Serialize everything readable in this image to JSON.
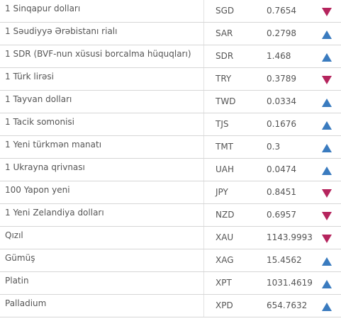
{
  "colors": {
    "down_arrow": "#b5245d",
    "up_arrow": "#3a7bbf",
    "row_divider": "#d6d6d6",
    "text": "#555555"
  },
  "rows": [
    {
      "name": "1 Sinqapur dolları",
      "code": "SGD",
      "value": "0.7654",
      "trend": "down"
    },
    {
      "name": "1 Səudiyyə Ərəbistanı rialı",
      "code": "SAR",
      "value": "0.2798",
      "trend": "up"
    },
    {
      "name": "1 SDR (BVF-nun xüsusi borcalma hüquqları)",
      "code": "SDR",
      "value": "1.468",
      "trend": "up"
    },
    {
      "name": "1 Türk lirəsi",
      "code": "TRY",
      "value": "0.3789",
      "trend": "down"
    },
    {
      "name": "1 Tayvan dolları",
      "code": "TWD",
      "value": "0.0334",
      "trend": "up"
    },
    {
      "name": "1 Tacik somonisi",
      "code": "TJS",
      "value": "0.1676",
      "trend": "up"
    },
    {
      "name": "1 Yeni türkmən manatı",
      "code": "TMT",
      "value": "0.3",
      "trend": "up"
    },
    {
      "name": "1 Ukrayna qrivnası",
      "code": "UAH",
      "value": "0.0474",
      "trend": "up"
    },
    {
      "name": "100 Yapon yeni",
      "code": "JPY",
      "value": "0.8451",
      "trend": "down"
    },
    {
      "name": "1 Yeni Zelandiya dolları",
      "code": "NZD",
      "value": "0.6957",
      "trend": "down"
    },
    {
      "name": "Qızıl",
      "code": "XAU",
      "value": "1143.9993",
      "trend": "down"
    },
    {
      "name": "Gümüş",
      "code": "XAG",
      "value": "15.4562",
      "trend": "up"
    },
    {
      "name": "Platin",
      "code": "XPT",
      "value": "1031.4619",
      "trend": "up"
    },
    {
      "name": "Palladium",
      "code": "XPD",
      "value": "654.7632",
      "trend": "up"
    }
  ]
}
